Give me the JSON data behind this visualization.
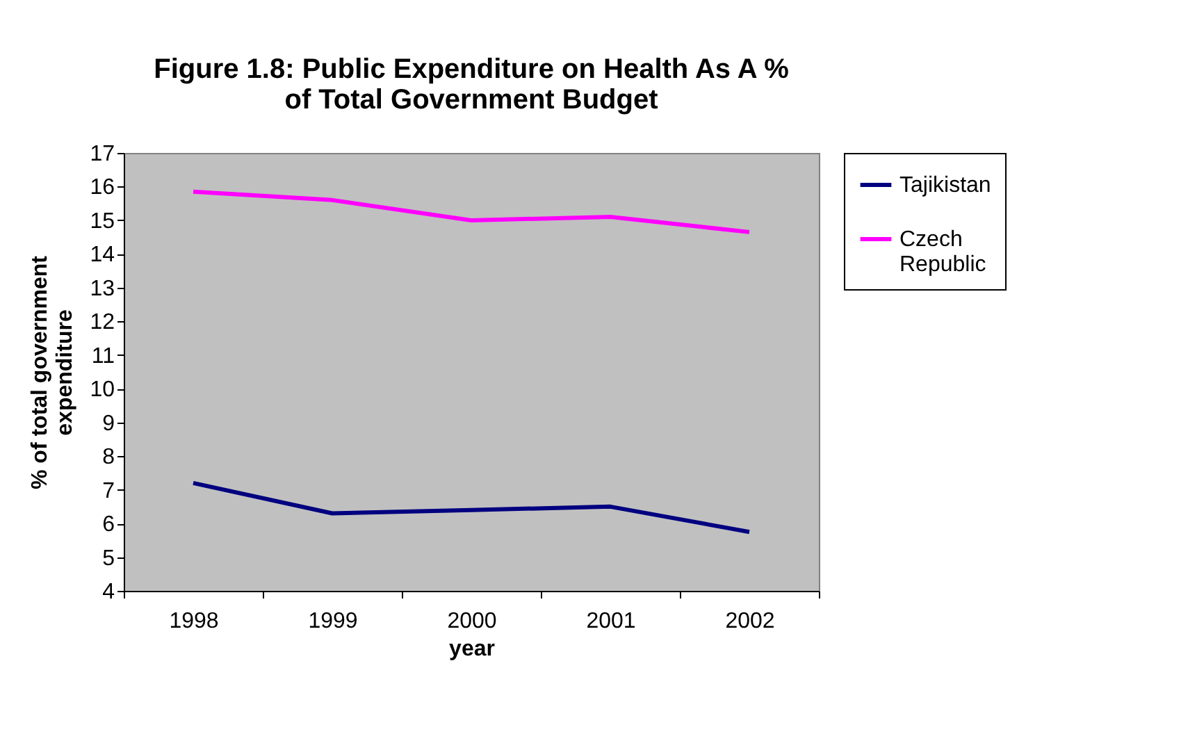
{
  "chart_data": {
    "type": "line",
    "title": "Figure 1.8: Public Expenditure on Health As A % of Total Government Budget",
    "xlabel": "year",
    "ylabel": "% of total government expenditure",
    "categories": [
      "1998",
      "1999",
      "2000",
      "2001",
      "2002"
    ],
    "series": [
      {
        "name": "Tajikistan",
        "color": "#000080",
        "values": [
          7.2,
          6.3,
          6.4,
          6.5,
          5.75
        ]
      },
      {
        "name": "Czech Republic",
        "color": "#ff00ff",
        "values": [
          15.85,
          15.6,
          15.0,
          15.1,
          14.65
        ]
      }
    ],
    "ylim": [
      4,
      17
    ],
    "yticks": [
      4,
      5,
      6,
      7,
      8,
      9,
      10,
      11,
      12,
      13,
      14,
      15,
      16,
      17
    ],
    "grid": false,
    "legend": "right",
    "marker": "none",
    "line_style": "solid"
  }
}
